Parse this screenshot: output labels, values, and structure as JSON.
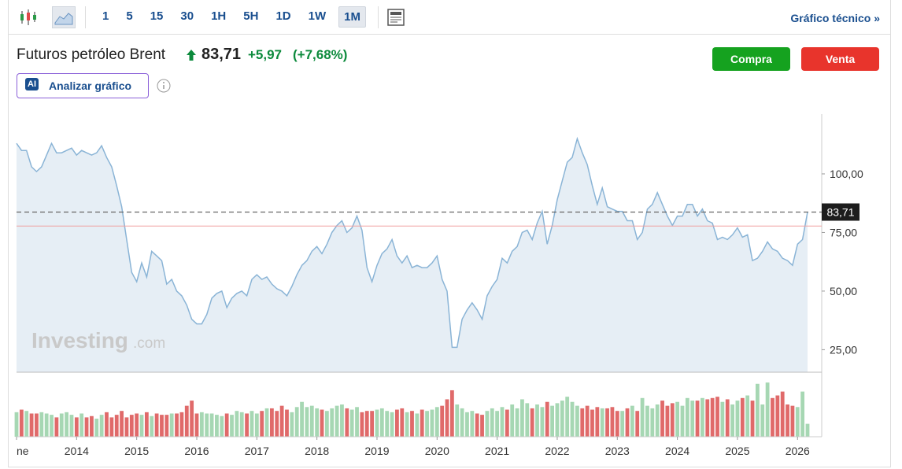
{
  "toolbar": {
    "intervals": [
      "1",
      "5",
      "15",
      "30",
      "1H",
      "5H",
      "1D",
      "1W",
      "1M"
    ],
    "selected": 8,
    "link": "Gráfico técnico »"
  },
  "header": {
    "name": "Futuros petróleo Brent",
    "price": "83,71",
    "change": "+5,97",
    "change_pct": "(+7,68%)",
    "ai_badge": "AI",
    "analyze": "Analizar gráfico",
    "buy": "Compra",
    "sell": "Venta"
  },
  "watermark": {
    "brand": "Investing",
    "suffix": ".com"
  },
  "chart_data": {
    "type": "line",
    "categories": [
      "ne",
      null,
      null,
      null,
      null,
      null,
      null,
      null,
      null,
      null,
      null,
      null,
      "2014",
      null,
      null,
      null,
      null,
      null,
      null,
      null,
      null,
      null,
      null,
      null,
      "2015",
      null,
      null,
      null,
      null,
      null,
      null,
      null,
      null,
      null,
      null,
      null,
      "2016",
      null,
      null,
      null,
      null,
      null,
      null,
      null,
      null,
      null,
      null,
      null,
      "2017",
      null,
      null,
      null,
      null,
      null,
      null,
      null,
      null,
      null,
      null,
      null,
      "2018",
      null,
      null,
      null,
      null,
      null,
      null,
      null,
      null,
      null,
      null,
      null,
      "2019",
      null,
      null,
      null,
      null,
      null,
      null,
      null,
      null,
      null,
      null,
      null,
      "2020",
      null,
      null,
      null,
      null,
      null,
      null,
      null,
      null,
      null,
      null,
      null,
      "2021",
      null,
      null,
      null,
      null,
      null,
      null,
      null,
      null,
      null,
      null,
      null,
      "2022",
      null,
      null,
      null,
      null,
      null,
      null,
      null,
      null,
      null,
      null,
      null,
      "2023",
      null,
      null,
      null,
      null,
      null,
      null,
      null,
      null,
      null,
      null,
      null,
      "2024",
      null,
      null,
      null,
      null,
      null,
      null,
      null,
      null,
      null,
      null,
      null,
      "2025",
      null,
      null,
      null,
      null,
      null,
      null,
      null,
      null,
      null,
      null,
      null,
      "2026",
      null,
      null
    ],
    "values": [
      113,
      110,
      110,
      103,
      101,
      103,
      108,
      113,
      109,
      109,
      110,
      111,
      108,
      110,
      109,
      108,
      109,
      112,
      107,
      103,
      95,
      86,
      72,
      58,
      54,
      62,
      56,
      67,
      65,
      63,
      53,
      55,
      50,
      48,
      44,
      38,
      36,
      36,
      40,
      47,
      49,
      50,
      43,
      47,
      49,
      50,
      48,
      55,
      57,
      55,
      56,
      53,
      51,
      50,
      48,
      52,
      57,
      61,
      63,
      67,
      69,
      66,
      70,
      75,
      78,
      80,
      75,
      77,
      82,
      76,
      60,
      54,
      61,
      66,
      68,
      72,
      65,
      62,
      65,
      60,
      61,
      60,
      60,
      62,
      65,
      55,
      50,
      26,
      26,
      38,
      42,
      45,
      42,
      38,
      48,
      52,
      55,
      64,
      62,
      67,
      69,
      75,
      76,
      72,
      79,
      84,
      70,
      78,
      89,
      97,
      105,
      107,
      115,
      109,
      104,
      95,
      87,
      94,
      86,
      85,
      84,
      84,
      80,
      80,
      72,
      75,
      85,
      87,
      92,
      87,
      82,
      78,
      82,
      82,
      87,
      87,
      82,
      85,
      80,
      79,
      72,
      73,
      72,
      74,
      77,
      73,
      74,
      63,
      64,
      67,
      71,
      68,
      67,
      64,
      63,
      61,
      70,
      72,
      83.71
    ],
    "color": "#8ab4d6",
    "fill": "#e6eef5",
    "ylim": [
      15.4,
      125.5
    ],
    "yticks": [
      {
        "value": 25,
        "label": "25,00"
      },
      {
        "value": 50,
        "label": "50,00"
      },
      {
        "value": 75,
        "label": "75,00"
      },
      {
        "value": 100,
        "label": "100,00"
      }
    ],
    "current_line": {
      "value": 83.71,
      "label": "83,71"
    },
    "reference_line": 77.74,
    "volume": {
      "values": [
        38,
        42,
        40,
        36,
        36,
        38,
        36,
        34,
        30,
        36,
        38,
        34,
        30,
        36,
        30,
        32,
        28,
        34,
        38,
        30,
        34,
        40,
        30,
        34,
        36,
        34,
        38,
        32,
        36,
        34,
        34,
        36,
        36,
        38,
        48,
        56,
        36,
        38,
        36,
        36,
        34,
        32,
        36,
        34,
        40,
        38,
        36,
        40,
        36,
        40,
        44,
        44,
        40,
        48,
        42,
        38,
        46,
        54,
        46,
        48,
        44,
        42,
        40,
        44,
        48,
        50,
        44,
        42,
        46,
        38,
        40,
        40,
        42,
        44,
        40,
        38,
        42,
        44,
        38,
        40,
        36,
        42,
        40,
        42,
        46,
        48,
        58,
        72,
        50,
        44,
        38,
        40,
        36,
        34,
        40,
        44,
        40,
        46,
        42,
        50,
        44,
        58,
        52,
        44,
        50,
        46,
        54,
        48,
        52,
        56,
        62,
        54,
        48,
        44,
        48,
        42,
        46,
        44,
        44,
        46,
        40,
        40,
        44,
        48,
        40,
        60,
        48,
        44,
        50,
        56,
        48,
        52,
        54,
        48,
        60,
        56,
        56,
        60,
        58,
        60,
        62,
        54,
        58,
        50,
        56,
        60,
        64,
        56,
        82,
        50,
        84,
        60,
        64,
        70,
        50,
        48,
        46,
        70,
        20
      ],
      "vlim": [
        0,
        100
      ],
      "up_color": "#a6d7b3",
      "down_color": "#e06a6a"
    }
  }
}
